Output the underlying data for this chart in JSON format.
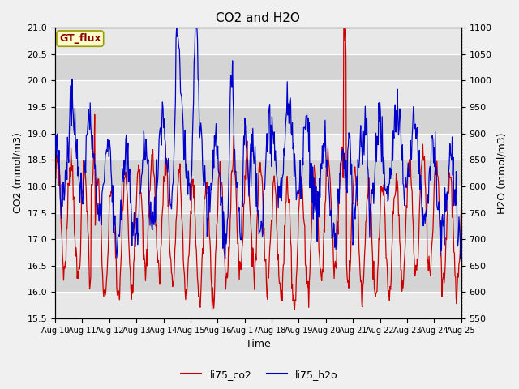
{
  "title": "CO2 and H2O",
  "xlabel": "Time",
  "ylabel_left": "CO2 (mmol/m3)",
  "ylabel_right": "H2O (mmol/m3)",
  "co2_label": "li75_co2",
  "h2o_label": "li75_h2o",
  "gt_flux_label": "GT_flux",
  "ylim_left": [
    15.5,
    21.0
  ],
  "ylim_right": [
    550,
    1100
  ],
  "co2_color": "#cc0000",
  "h2o_color": "#0000cc",
  "background_color": "#f0f0f0",
  "plot_bg_color": "#e8e8e8",
  "alt_band_color": "#d4d4d4",
  "grid_color": "#ffffff",
  "title_fontsize": 11,
  "axis_fontsize": 9,
  "tick_fontsize": 8,
  "legend_fontsize": 9,
  "x_start": 10,
  "x_end": 25,
  "x_ticks": [
    10,
    11,
    12,
    13,
    14,
    15,
    16,
    17,
    18,
    19,
    20,
    21,
    22,
    23,
    24,
    25
  ],
  "x_tick_labels": [
    "Aug 10",
    "Aug 11",
    "Aug 12",
    "Aug 13",
    "Aug 14",
    "Aug 15",
    "Aug 16",
    "Aug 17",
    "Aug 18",
    "Aug 19",
    "Aug 20",
    "Aug 21",
    "Aug 22",
    "Aug 23",
    "Aug 24",
    "Aug 25"
  ]
}
